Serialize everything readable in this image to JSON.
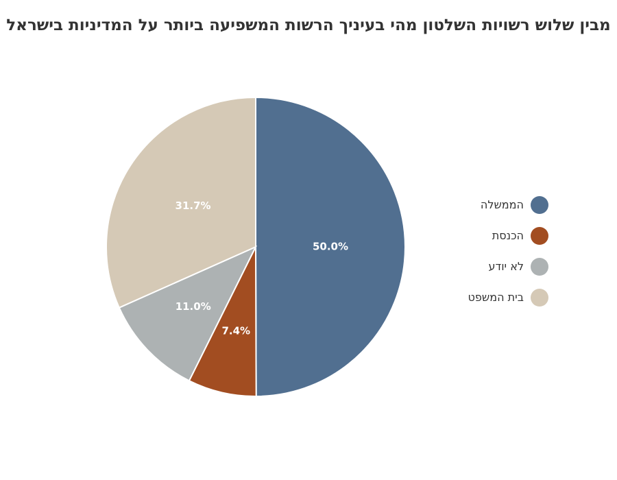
{
  "chart_data": {
    "type": "pie",
    "title": "מבין שלוש רשויות השלטון מהי בעיניך הרשות המשפיעה ביותר על המדיניות בישראל",
    "legend_position": "right",
    "slices": [
      {
        "label": "הממשלה",
        "value": 50.0,
        "value_label": "50.0%",
        "color": "#516f90"
      },
      {
        "label": "הכנסת",
        "value": 7.4,
        "value_label": "7.4%",
        "color": "#a24d21"
      },
      {
        "label": "לא יודע",
        "value": 11.0,
        "value_label": "11.0%",
        "color": "#adb2b3"
      },
      {
        "label": "בית המשפט",
        "value": 31.7,
        "value_label": "31.7%",
        "color": "#d5c9b6"
      }
    ]
  }
}
